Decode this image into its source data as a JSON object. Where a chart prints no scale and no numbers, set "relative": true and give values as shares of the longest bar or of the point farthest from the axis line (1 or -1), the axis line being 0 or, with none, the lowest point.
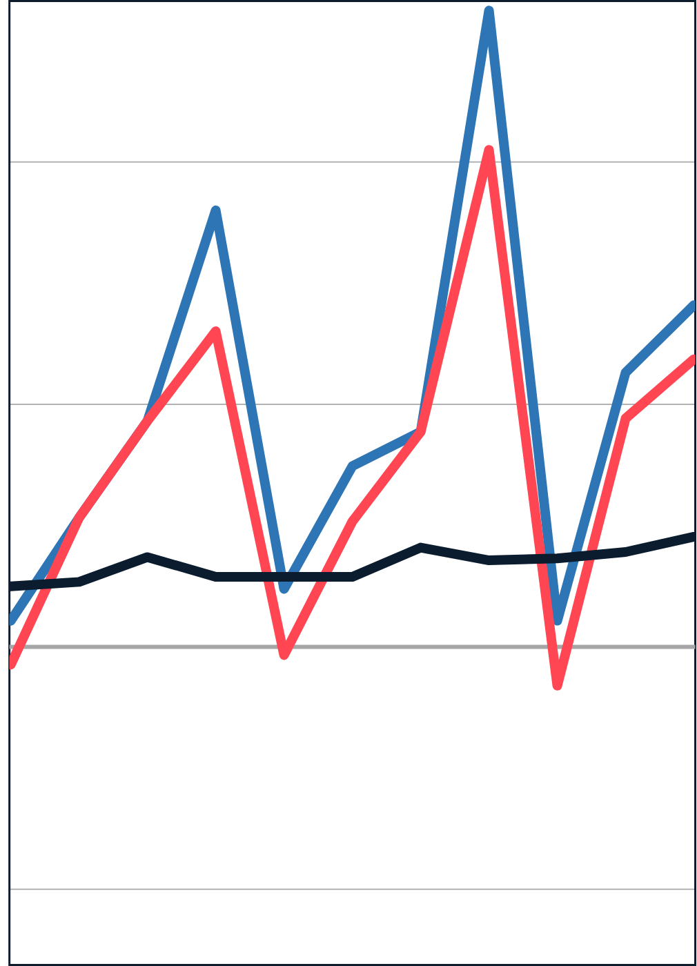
{
  "chart_data": {
    "type": "line",
    "relative": true,
    "grid": "y",
    "categories": [
      null,
      null,
      null,
      null,
      null,
      null,
      null,
      null,
      null,
      null,
      null
    ],
    "series": [
      {
        "color": "#2e75b6",
        "values": [
          0.041,
          0.203,
          0.355,
          0.686,
          0.091,
          0.284,
          0.338,
          1,
          0.041,
          0.431,
          0.537
        ]
      },
      {
        "color": "#ff4652",
        "values": [
          -0.028,
          0.203,
          0.355,
          0.496,
          -0.013,
          0.197,
          0.338,
          0.781,
          -0.061,
          0.359,
          0.452
        ]
      },
      {
        "color": "#0b1c2e",
        "values": [
          0.095,
          0.102,
          0.141,
          0.11,
          0.11,
          0.11,
          0.156,
          0.136,
          0.139,
          0.149,
          0.173
        ]
      }
    ]
  }
}
